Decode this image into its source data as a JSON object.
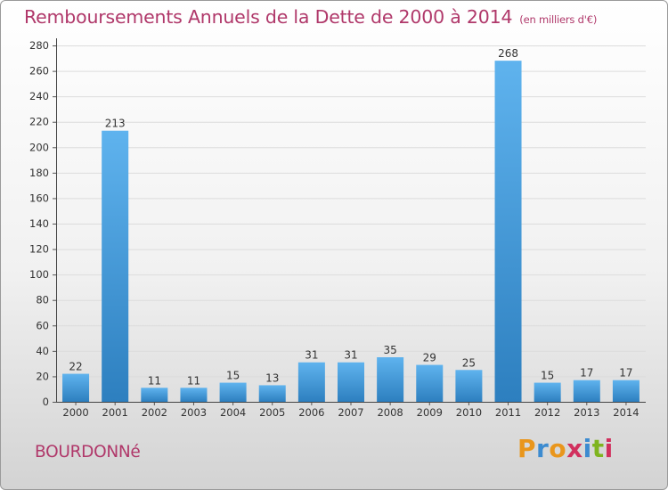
{
  "header": {
    "title": "Remboursements Annuels de la Dette de 2000 à 2014",
    "unit": "(en milliers d'€)"
  },
  "footer": {
    "town": "BOURDONNé",
    "logo": {
      "letters": [
        "P",
        "r",
        "o",
        "x",
        "i",
        "t",
        "i"
      ],
      "colors": [
        "#e9961c",
        "#3c8bd0",
        "#e9961c",
        "#d1305e",
        "#3c8bd0",
        "#7fb41f",
        "#d1305e"
      ]
    }
  },
  "colors": {
    "bar_light": "#5fb3ee",
    "bar_dark": "#2d7fbf",
    "title": "#b0386a"
  },
  "chart_data": {
    "type": "bar",
    "title": "Remboursements Annuels de la Dette de 2000 à 2014",
    "subtitle": "(en milliers d'€)",
    "xlabel": "",
    "ylabel": "",
    "categories": [
      "2000",
      "2001",
      "2002",
      "2003",
      "2004",
      "2005",
      "2006",
      "2007",
      "2008",
      "2009",
      "2010",
      "2011",
      "2012",
      "2013",
      "2014"
    ],
    "values": [
      22,
      213,
      11,
      11,
      15,
      13,
      31,
      31,
      35,
      29,
      25,
      268,
      15,
      17,
      17
    ],
    "ylim": [
      0,
      280
    ],
    "yticks": [
      0,
      20,
      40,
      60,
      80,
      100,
      120,
      140,
      160,
      180,
      200,
      220,
      240,
      260,
      280
    ],
    "grid": true,
    "data_labels": true
  }
}
